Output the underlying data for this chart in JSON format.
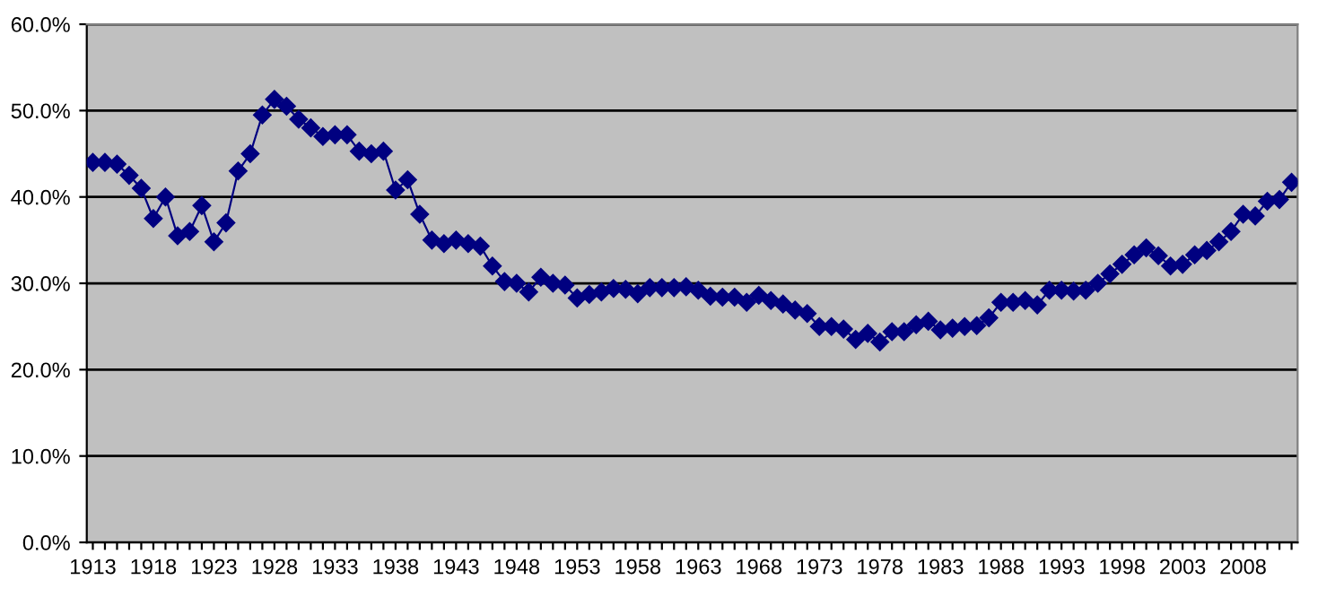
{
  "chart_data": {
    "type": "line",
    "categories": [
      "1913",
      null,
      null,
      null,
      null,
      "1918",
      null,
      null,
      null,
      null,
      "1923",
      null,
      null,
      null,
      null,
      "1928",
      null,
      null,
      null,
      null,
      "1933",
      null,
      null,
      null,
      null,
      "1938",
      null,
      null,
      null,
      null,
      "1943",
      null,
      null,
      null,
      null,
      "1948",
      null,
      null,
      null,
      null,
      "1953",
      null,
      null,
      null,
      null,
      "1958",
      null,
      null,
      null,
      null,
      "1963",
      null,
      null,
      null,
      null,
      "1968",
      null,
      null,
      null,
      null,
      "1973",
      null,
      null,
      null,
      null,
      "1978",
      null,
      null,
      null,
      null,
      "1983",
      null,
      null,
      null,
      null,
      "1988",
      null,
      null,
      null,
      null,
      "1993",
      null,
      null,
      null,
      null,
      "1998",
      null,
      null,
      null,
      null,
      "2003",
      null,
      null,
      null,
      null,
      "2008",
      null,
      null,
      null,
      null
    ],
    "series": [
      {
        "color": "#000080",
        "values": [
          44.0,
          44.0,
          43.8,
          42.5,
          41.0,
          37.5,
          40.0,
          35.5,
          36.0,
          39.0,
          34.8,
          37.0,
          43.0,
          45.0,
          49.5,
          51.3,
          50.5,
          49.0,
          48.0,
          47.0,
          47.2,
          47.2,
          45.3,
          45.0,
          45.3,
          40.8,
          42.0,
          38.0,
          35.0,
          34.6,
          35.0,
          34.6,
          34.3,
          32.0,
          30.2,
          30.0,
          29.0,
          30.7,
          30.0,
          29.8,
          28.3,
          28.7,
          29.0,
          29.4,
          29.3,
          28.8,
          29.5,
          29.5,
          29.5,
          29.6,
          29.2,
          28.5,
          28.4,
          28.4,
          27.8,
          28.6,
          28.0,
          27.6,
          26.9,
          26.5,
          25.0,
          25.0,
          24.7,
          23.5,
          24.2,
          23.2,
          24.4,
          24.4,
          25.2,
          25.6,
          24.6,
          24.8,
          25.0,
          25.1,
          26.0,
          27.8,
          27.8,
          28.0,
          27.5,
          29.2,
          29.2,
          29.1,
          29.2,
          30.0,
          31.1,
          32.2,
          33.3,
          34.1,
          33.2,
          32.0,
          32.2,
          33.3,
          33.8,
          34.8,
          36.0,
          38.0,
          37.8,
          39.5,
          39.7,
          41.7
        ]
      }
    ],
    "ylim": [
      0,
      60
    ],
    "yticks": [
      {
        "value": 0,
        "label": "0.0%"
      },
      {
        "value": 10,
        "label": "10.0%"
      },
      {
        "value": 20,
        "label": "20.0%"
      },
      {
        "value": 30,
        "label": "30.0%"
      },
      {
        "value": 40,
        "label": "40.0%"
      },
      {
        "value": 50,
        "label": "50.0%"
      },
      {
        "value": 60,
        "label": "60.0%"
      }
    ],
    "grid": "y",
    "marker": "diamond",
    "line_style": "solid",
    "legend": false
  }
}
